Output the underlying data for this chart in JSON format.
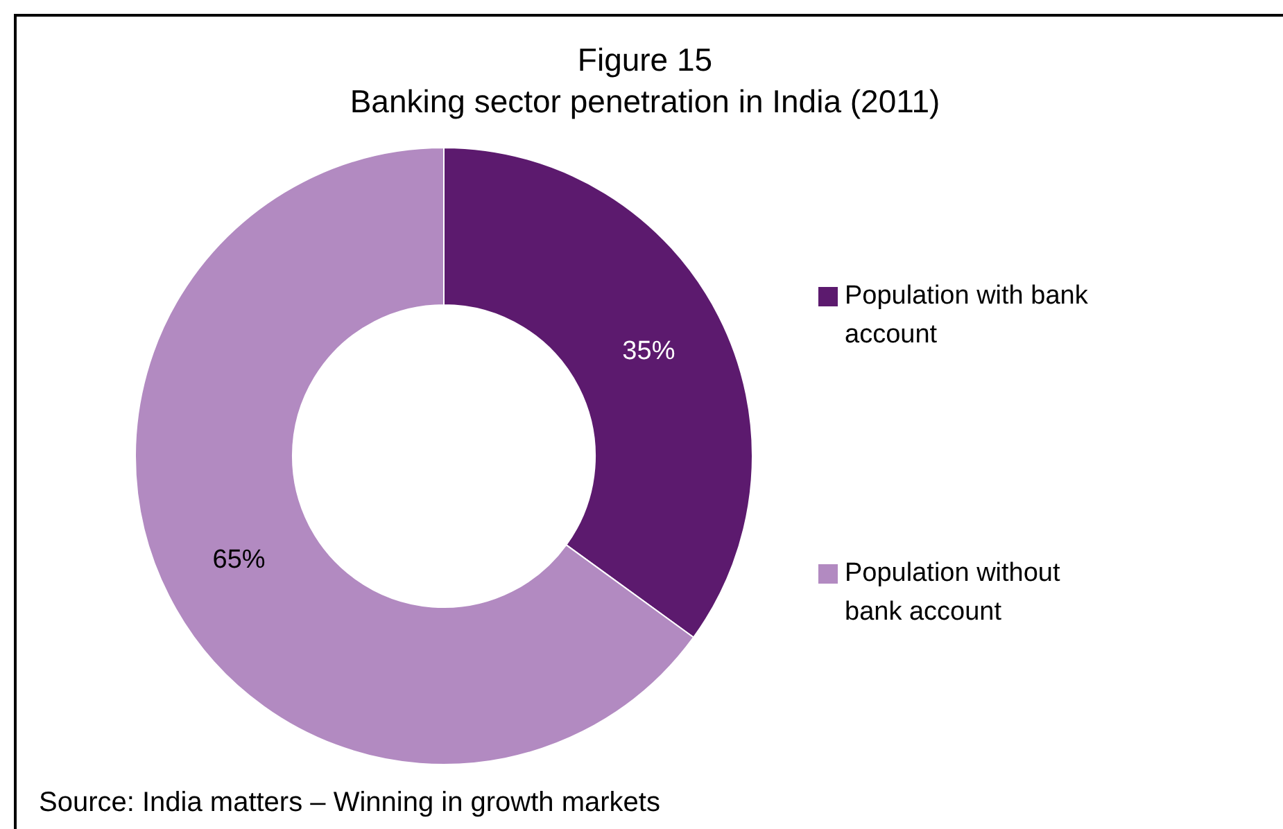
{
  "chart_data": {
    "type": "donut",
    "title": "Figure 15",
    "subtitle": "Banking sector penetration in India (2011)",
    "categories": [
      "Population with bank account",
      "Population without bank account"
    ],
    "values": [
      35,
      65
    ],
    "colors": [
      "#5c1a6e",
      "#b28ac1"
    ],
    "value_labels": [
      "35%",
      "65%"
    ],
    "legend": "right",
    "annotations": [
      "Source: India matters – Winning in growth markets"
    ]
  }
}
